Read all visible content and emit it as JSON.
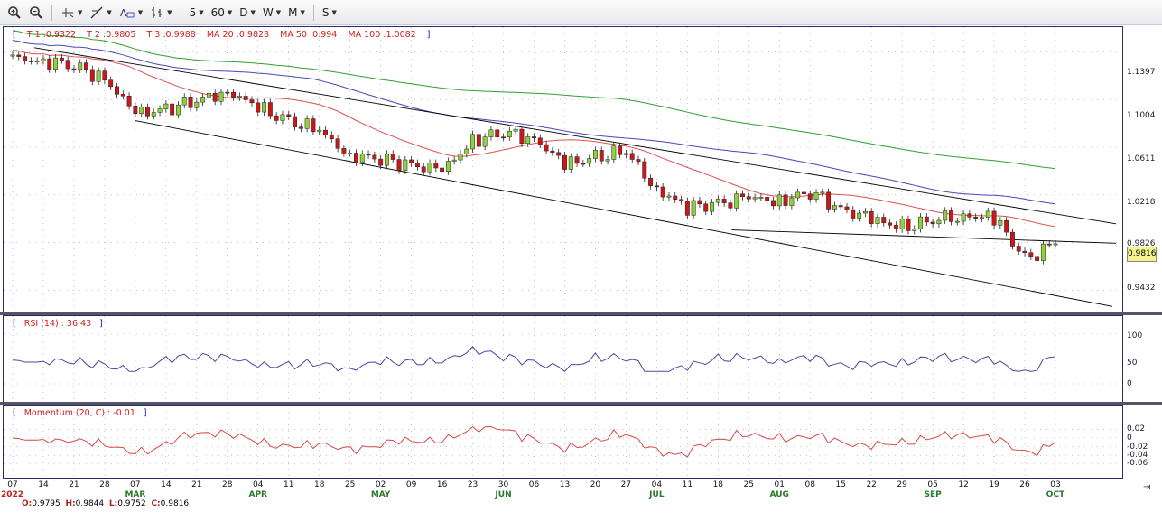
{
  "toolbar": {
    "items": [
      {
        "name": "zoom-in-icon",
        "glyph": "🔍"
      },
      {
        "name": "zoom-out-icon",
        "glyph": "🔎"
      }
    ],
    "period_buttons": [
      "5",
      "60",
      "D",
      "W",
      "M"
    ],
    "s_button": "S"
  },
  "price_panel": {
    "legend": {
      "t1": "T 1 :0.9322",
      "t2": "T 2 :0.9805",
      "t3": "T 3 :0.9988",
      "ma20": "MA 20 :0.9828",
      "ma50": "MA 50 :0.994",
      "ma100": "MA 100 :1.0082"
    },
    "y_labels": [
      "1.1397",
      "1.1004",
      "1.0611",
      "1.0218",
      "0.9826",
      "0.9432"
    ],
    "last_price": "0.9816"
  },
  "rsi_panel": {
    "legend": "RSI (14) : 36.43",
    "y_labels": [
      "100",
      "50",
      "0"
    ]
  },
  "mom_panel": {
    "legend": "Momentum (20, C) : -0.01",
    "y_labels": [
      "0.02",
      "0",
      "-0.02",
      "-0.04",
      "-0.06"
    ]
  },
  "x_axis": {
    "days": [
      "07",
      "14",
      "21",
      "28",
      "07",
      "14",
      "21",
      "28",
      "04",
      "11",
      "18",
      "25",
      "02",
      "09",
      "16",
      "23",
      "30",
      "06",
      "13",
      "20",
      "27",
      "04",
      "11",
      "18",
      "25",
      "01",
      "08",
      "15",
      "22",
      "29",
      "05",
      "12",
      "19",
      "26",
      "03"
    ],
    "months": [
      "MAR",
      "APR",
      "MAY",
      "JUN",
      "JUL",
      "AUG",
      "SEP",
      "OCT"
    ],
    "year": "2022"
  },
  "ohlc": {
    "open": "0.9795",
    "high": "0.9844",
    "low": "0.9752",
    "close": "0.9816"
  },
  "colors": {
    "bull": "#8fd13a",
    "bear": "#c81818",
    "ma20": "#e05050",
    "ma50": "#4848b8",
    "ma100": "#30a030",
    "rsi": "#4848a0",
    "momentum": "#d84848",
    "trend": "#000000",
    "grid": "#9a9ab4"
  },
  "chart_data": {
    "type": "candlestick",
    "x_dates": [
      "07",
      "14",
      "21",
      "28",
      "07",
      "14",
      "21",
      "28",
      "04",
      "11",
      "18",
      "25",
      "02",
      "09",
      "16",
      "23",
      "30",
      "06",
      "13",
      "20",
      "27",
      "04",
      "11",
      "18",
      "25",
      "01",
      "08",
      "15",
      "22",
      "29",
      "05",
      "12",
      "19",
      "26",
      "03"
    ],
    "close_weekly": [
      1.134,
      1.133,
      1.128,
      1.118,
      1.088,
      1.093,
      1.099,
      1.108,
      1.093,
      1.083,
      1.074,
      1.055,
      1.051,
      1.047,
      1.041,
      1.067,
      1.073,
      1.069,
      1.046,
      1.053,
      1.057,
      1.027,
      1.011,
      1.015,
      1.019,
      1.017,
      1.024,
      1.011,
      1.001,
      0.995,
      1.001,
      1.005,
      1.003,
      0.969,
      0.9816
    ],
    "ylim": [
      0.925,
      1.16
    ],
    "y_ticks": [
      1.1397,
      1.1004,
      1.0611,
      1.0218,
      0.9826,
      0.9432
    ],
    "last": 0.9816
  }
}
